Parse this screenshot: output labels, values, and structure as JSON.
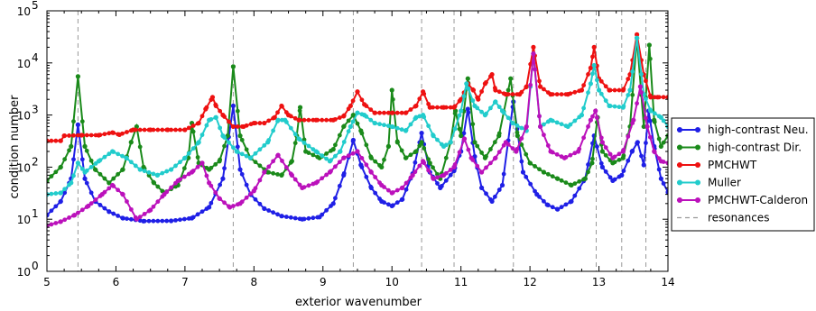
{
  "chart_data": {
    "type": "line",
    "title": "",
    "xlabel": "exterior wavenumber",
    "ylabel": "condition number",
    "xlim": [
      5,
      14
    ],
    "ylim": [
      1,
      100000
    ],
    "yscale": "log",
    "grid": false,
    "legend_position": "right-outside",
    "x_ticks": [
      "5",
      "6",
      "7",
      "8",
      "9",
      "10",
      "11",
      "12",
      "13",
      "14"
    ],
    "y_ticks": [
      {
        "value": 1,
        "base": "10",
        "exp": "0"
      },
      {
        "value": 10,
        "base": "10",
        "exp": "1"
      },
      {
        "value": 100,
        "base": "10",
        "exp": "2"
      },
      {
        "value": 1000,
        "base": "10",
        "exp": "3"
      },
      {
        "value": 10000,
        "base": "10",
        "exp": "4"
      },
      {
        "value": 100000,
        "base": "10",
        "exp": "5"
      }
    ],
    "resonances": [
      5.45,
      7.7,
      9.44,
      10.43,
      10.9,
      11.76,
      12.96,
      13.33,
      13.68
    ],
    "series": [
      {
        "name": "high-contrast Neu.",
        "color": "#1f1fe6",
        "points": [
          [
            5.0,
            12
          ],
          [
            5.2,
            22
          ],
          [
            5.35,
            60
          ],
          [
            5.45,
            650
          ],
          [
            5.55,
            60
          ],
          [
            5.7,
            22
          ],
          [
            5.9,
            14
          ],
          [
            6.1,
            10.5
          ],
          [
            6.4,
            9.2
          ],
          [
            6.8,
            9.3
          ],
          [
            7.1,
            10.5
          ],
          [
            7.35,
            17
          ],
          [
            7.55,
            60
          ],
          [
            7.7,
            1500
          ],
          [
            7.8,
            90
          ],
          [
            7.95,
            30
          ],
          [
            8.15,
            16
          ],
          [
            8.4,
            11.5
          ],
          [
            8.7,
            10
          ],
          [
            8.95,
            11
          ],
          [
            9.15,
            20
          ],
          [
            9.3,
            70
          ],
          [
            9.44,
            330
          ],
          [
            9.55,
            110
          ],
          [
            9.7,
            40
          ],
          [
            9.85,
            22
          ],
          [
            10.0,
            18
          ],
          [
            10.15,
            24
          ],
          [
            10.3,
            75
          ],
          [
            10.43,
            450
          ],
          [
            10.55,
            80
          ],
          [
            10.7,
            40
          ],
          [
            10.9,
            85
          ],
          [
            11.0,
            200
          ],
          [
            11.1,
            1300
          ],
          [
            11.2,
            160
          ],
          [
            11.3,
            40
          ],
          [
            11.45,
            22
          ],
          [
            11.6,
            45
          ],
          [
            11.76,
            1800
          ],
          [
            11.9,
            80
          ],
          [
            12.1,
            30
          ],
          [
            12.25,
            19
          ],
          [
            12.4,
            15.5
          ],
          [
            12.6,
            22
          ],
          [
            12.8,
            60
          ],
          [
            12.93,
            400
          ],
          [
            13.05,
            100
          ],
          [
            13.2,
            55
          ],
          [
            13.33,
            70
          ],
          [
            13.48,
            200
          ],
          [
            13.56,
            300
          ],
          [
            13.65,
            110
          ],
          [
            13.72,
            1200
          ],
          [
            13.8,
            250
          ],
          [
            13.9,
            60
          ],
          [
            14.0,
            33
          ]
        ]
      },
      {
        "name": "high-contrast Dir.",
        "color": "#1a8a1a",
        "points": [
          [
            5.0,
            55
          ],
          [
            5.2,
            100
          ],
          [
            5.35,
            250
          ],
          [
            5.45,
            5500
          ],
          [
            5.55,
            250
          ],
          [
            5.7,
            90
          ],
          [
            5.9,
            50
          ],
          [
            6.1,
            90
          ],
          [
            6.22,
            300
          ],
          [
            6.3,
            600
          ],
          [
            6.4,
            100
          ],
          [
            6.55,
            50
          ],
          [
            6.7,
            32
          ],
          [
            6.9,
            45
          ],
          [
            7.05,
            150
          ],
          [
            7.1,
            700
          ],
          [
            7.2,
            120
          ],
          [
            7.35,
            90
          ],
          [
            7.5,
            130
          ],
          [
            7.62,
            400
          ],
          [
            7.7,
            8500
          ],
          [
            7.8,
            400
          ],
          [
            7.95,
            150
          ],
          [
            8.2,
            80
          ],
          [
            8.4,
            70
          ],
          [
            8.55,
            130
          ],
          [
            8.62,
            400
          ],
          [
            8.67,
            1400
          ],
          [
            8.75,
            200
          ],
          [
            8.95,
            150
          ],
          [
            9.15,
            220
          ],
          [
            9.3,
            600
          ],
          [
            9.44,
            1000
          ],
          [
            9.55,
            500
          ],
          [
            9.7,
            150
          ],
          [
            9.85,
            100
          ],
          [
            9.95,
            250
          ],
          [
            10.0,
            3000
          ],
          [
            10.08,
            300
          ],
          [
            10.2,
            150
          ],
          [
            10.35,
            200
          ],
          [
            10.43,
            300
          ],
          [
            10.55,
            120
          ],
          [
            10.7,
            60
          ],
          [
            10.85,
            300
          ],
          [
            10.92,
            1200
          ],
          [
            11.0,
            400
          ],
          [
            11.1,
            5000
          ],
          [
            11.2,
            300
          ],
          [
            11.35,
            150
          ],
          [
            11.55,
            400
          ],
          [
            11.72,
            5000
          ],
          [
            11.82,
            400
          ],
          [
            12.0,
            120
          ],
          [
            12.2,
            80
          ],
          [
            12.4,
            60
          ],
          [
            12.6,
            45
          ],
          [
            12.8,
            60
          ],
          [
            12.9,
            120
          ],
          [
            12.98,
            900
          ],
          [
            13.05,
            200
          ],
          [
            13.2,
            120
          ],
          [
            13.35,
            150
          ],
          [
            13.45,
            600
          ],
          [
            13.55,
            30000
          ],
          [
            13.65,
            600
          ],
          [
            13.73,
            22000
          ],
          [
            13.8,
            800
          ],
          [
            13.9,
            250
          ],
          [
            14.0,
            400
          ]
        ]
      },
      {
        "name": "PMCHWT",
        "color": "#ee1111",
        "points": [
          [
            5.0,
            320
          ],
          [
            5.2,
            320
          ],
          [
            5.25,
            400
          ],
          [
            5.5,
            410
          ],
          [
            5.75,
            410
          ],
          [
            5.95,
            460
          ],
          [
            6.05,
            420
          ],
          [
            6.25,
            520
          ],
          [
            6.5,
            520
          ],
          [
            6.75,
            520
          ],
          [
            7.0,
            520
          ],
          [
            7.2,
            700
          ],
          [
            7.3,
            1300
          ],
          [
            7.4,
            2200
          ],
          [
            7.45,
            1500
          ],
          [
            7.55,
            1000
          ],
          [
            7.7,
            600
          ],
          [
            7.85,
            600
          ],
          [
            8.0,
            700
          ],
          [
            8.15,
            700
          ],
          [
            8.3,
            900
          ],
          [
            8.4,
            1500
          ],
          [
            8.5,
            1000
          ],
          [
            8.65,
            800
          ],
          [
            8.9,
            800
          ],
          [
            9.15,
            800
          ],
          [
            9.3,
            950
          ],
          [
            9.4,
            1500
          ],
          [
            9.5,
            2800
          ],
          [
            9.6,
            1600
          ],
          [
            9.75,
            1100
          ],
          [
            10.0,
            1100
          ],
          [
            10.2,
            1100
          ],
          [
            10.35,
            1500
          ],
          [
            10.45,
            2800
          ],
          [
            10.55,
            1400
          ],
          [
            10.75,
            1400
          ],
          [
            10.9,
            1400
          ],
          [
            11.0,
            2000
          ],
          [
            11.1,
            4000
          ],
          [
            11.18,
            3000
          ],
          [
            11.25,
            2000
          ],
          [
            11.35,
            4000
          ],
          [
            11.45,
            6000
          ],
          [
            11.5,
            3000
          ],
          [
            11.65,
            2500
          ],
          [
            11.85,
            2500
          ],
          [
            11.95,
            3500
          ],
          [
            12.05,
            20000
          ],
          [
            12.15,
            3500
          ],
          [
            12.3,
            2500
          ],
          [
            12.55,
            2500
          ],
          [
            12.75,
            3000
          ],
          [
            12.88,
            8000
          ],
          [
            12.93,
            20000
          ],
          [
            13.0,
            5000
          ],
          [
            13.15,
            3000
          ],
          [
            13.35,
            3000
          ],
          [
            13.45,
            6000
          ],
          [
            13.55,
            35000
          ],
          [
            13.65,
            6000
          ],
          [
            13.75,
            2200
          ],
          [
            13.85,
            2200
          ],
          [
            14.0,
            2200
          ]
        ]
      },
      {
        "name": "Muller",
        "color": "#22cccc",
        "points": [
          [
            5.0,
            30
          ],
          [
            5.2,
            32
          ],
          [
            5.35,
            50
          ],
          [
            5.45,
            120
          ],
          [
            5.55,
            80
          ],
          [
            5.75,
            130
          ],
          [
            5.95,
            200
          ],
          [
            6.15,
            150
          ],
          [
            6.35,
            90
          ],
          [
            6.6,
            70
          ],
          [
            6.8,
            90
          ],
          [
            7.0,
            150
          ],
          [
            7.2,
            300
          ],
          [
            7.35,
            800
          ],
          [
            7.45,
            900
          ],
          [
            7.55,
            400
          ],
          [
            7.75,
            200
          ],
          [
            7.95,
            150
          ],
          [
            8.2,
            300
          ],
          [
            8.35,
            800
          ],
          [
            8.45,
            800
          ],
          [
            8.65,
            350
          ],
          [
            8.9,
            200
          ],
          [
            9.1,
            130
          ],
          [
            9.25,
            200
          ],
          [
            9.4,
            600
          ],
          [
            9.5,
            1100
          ],
          [
            9.6,
            1000
          ],
          [
            9.75,
            700
          ],
          [
            10.0,
            600
          ],
          [
            10.2,
            500
          ],
          [
            10.35,
            900
          ],
          [
            10.45,
            1000
          ],
          [
            10.6,
            400
          ],
          [
            10.75,
            250
          ],
          [
            10.85,
            300
          ],
          [
            11.0,
            1200
          ],
          [
            11.08,
            4000
          ],
          [
            11.2,
            1500
          ],
          [
            11.35,
            1000
          ],
          [
            11.5,
            1800
          ],
          [
            11.6,
            1200
          ],
          [
            11.75,
            700
          ],
          [
            11.95,
            500
          ],
          [
            12.05,
            15000
          ],
          [
            12.15,
            600
          ],
          [
            12.3,
            800
          ],
          [
            12.55,
            600
          ],
          [
            12.75,
            1000
          ],
          [
            12.88,
            4000
          ],
          [
            12.93,
            9000
          ],
          [
            13.0,
            3000
          ],
          [
            13.15,
            1500
          ],
          [
            13.35,
            1400
          ],
          [
            13.45,
            3000
          ],
          [
            13.55,
            30000
          ],
          [
            13.65,
            2500
          ],
          [
            13.75,
            1200
          ],
          [
            13.9,
            900
          ],
          [
            14.0,
            600
          ]
        ]
      },
      {
        "name": "PMCHWT-Calderon",
        "color": "#bb11bb",
        "points": [
          [
            5.0,
            7.5
          ],
          [
            5.2,
            9
          ],
          [
            5.4,
            12
          ],
          [
            5.6,
            18
          ],
          [
            5.8,
            30
          ],
          [
            5.95,
            45
          ],
          [
            6.1,
            30
          ],
          [
            6.3,
            10
          ],
          [
            6.5,
            15
          ],
          [
            6.7,
            30
          ],
          [
            6.9,
            55
          ],
          [
            7.1,
            80
          ],
          [
            7.25,
            120
          ],
          [
            7.35,
            50
          ],
          [
            7.5,
            25
          ],
          [
            7.65,
            17
          ],
          [
            7.8,
            20
          ],
          [
            8.0,
            35
          ],
          [
            8.15,
            80
          ],
          [
            8.35,
            170
          ],
          [
            8.55,
            70
          ],
          [
            8.7,
            40
          ],
          [
            8.9,
            50
          ],
          [
            9.1,
            80
          ],
          [
            9.3,
            150
          ],
          [
            9.5,
            200
          ],
          [
            9.7,
            80
          ],
          [
            9.85,
            45
          ],
          [
            10.0,
            32
          ],
          [
            10.15,
            40
          ],
          [
            10.3,
            70
          ],
          [
            10.45,
            130
          ],
          [
            10.6,
            60
          ],
          [
            10.75,
            70
          ],
          [
            10.9,
            100
          ],
          [
            11.05,
            350
          ],
          [
            11.15,
            150
          ],
          [
            11.3,
            80
          ],
          [
            11.5,
            150
          ],
          [
            11.65,
            300
          ],
          [
            11.8,
            200
          ],
          [
            11.95,
            600
          ],
          [
            12.05,
            15000
          ],
          [
            12.15,
            600
          ],
          [
            12.3,
            200
          ],
          [
            12.5,
            150
          ],
          [
            12.7,
            200
          ],
          [
            12.88,
            800
          ],
          [
            12.95,
            1200
          ],
          [
            13.05,
            300
          ],
          [
            13.2,
            150
          ],
          [
            13.35,
            200
          ],
          [
            13.5,
            800
          ],
          [
            13.6,
            3500
          ],
          [
            13.7,
            600
          ],
          [
            13.8,
            200
          ],
          [
            13.9,
            130
          ],
          [
            14.0,
            120
          ]
        ]
      }
    ],
    "resonance_legend": {
      "name": "resonances",
      "color": "#999999"
    }
  }
}
